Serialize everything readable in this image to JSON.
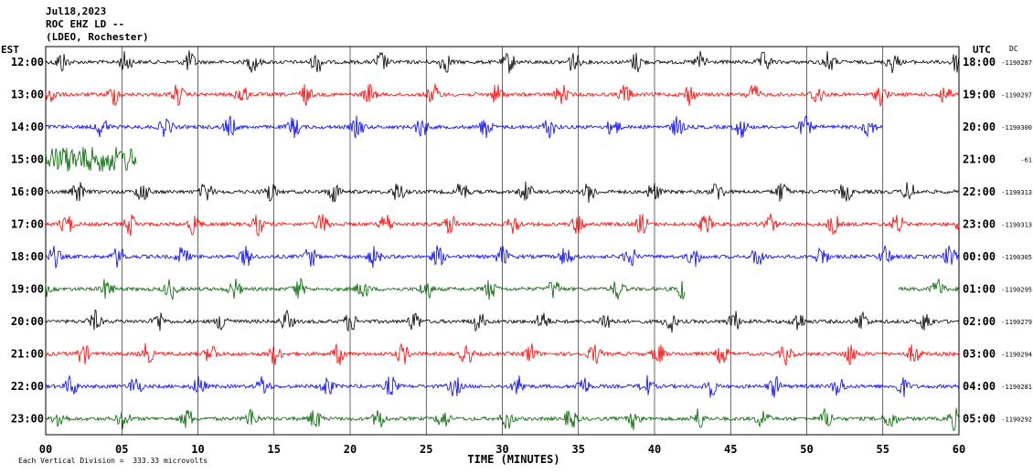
{
  "header": {
    "date": "Jul18,2023",
    "station": "ROC EHZ LD --",
    "network": "(LDEO, Rochester)"
  },
  "left_tz": "EST",
  "right_tz": "UTC",
  "dc_label": "DC",
  "footer": {
    "scale_text": "Each Vertical Division =  333.33 microvolts"
  },
  "colors": {
    "black": "#000000",
    "red": "#ff0000",
    "blue": "#0000ff",
    "green": "#006400"
  },
  "chart_data": {
    "type": "line",
    "title": "",
    "xlabel": "TIME (MINUTES)",
    "ylabel": "",
    "xlim": [
      0,
      60
    ],
    "x_ticks": [
      "00",
      "05",
      "10",
      "15",
      "20",
      "25",
      "30",
      "35",
      "40",
      "45",
      "50",
      "55",
      "60"
    ],
    "grid": true,
    "series": [
      {
        "est": "12:00",
        "utc": "18:00",
        "dc": "-1190287",
        "color": "black",
        "end_minute": 60,
        "start_minute": 0
      },
      {
        "est": "13:00",
        "utc": "19:00",
        "dc": "-1190297",
        "color": "red",
        "end_minute": 60,
        "start_minute": 0
      },
      {
        "est": "14:00",
        "utc": "20:00",
        "dc": "-1190300",
        "color": "blue",
        "end_minute": 55,
        "start_minute": 0
      },
      {
        "est": "15:00",
        "utc": "21:00",
        "dc": "-61",
        "color": "green",
        "end_minute": 6,
        "start_minute": 0
      },
      {
        "est": "16:00",
        "utc": "22:00",
        "dc": "-1190313",
        "color": "black",
        "end_minute": 60,
        "start_minute": 0
      },
      {
        "est": "17:00",
        "utc": "23:00",
        "dc": "-1190313",
        "color": "red",
        "end_minute": 60,
        "start_minute": 0
      },
      {
        "est": "18:00",
        "utc": "00:00",
        "dc": "-1190305",
        "color": "blue",
        "end_minute": 60,
        "start_minute": 0
      },
      {
        "est": "19:00",
        "utc": "01:00",
        "dc": "-1190295",
        "color": "green",
        "end_minute": 60,
        "start_minute": 0,
        "gap": [
          42,
          56
        ]
      },
      {
        "est": "20:00",
        "utc": "02:00",
        "dc": "-1190279",
        "color": "black",
        "end_minute": 60,
        "start_minute": 0
      },
      {
        "est": "21:00",
        "utc": "03:00",
        "dc": "-1190294",
        "color": "red",
        "end_minute": 60,
        "start_minute": 0
      },
      {
        "est": "22:00",
        "utc": "04:00",
        "dc": "-1190281",
        "color": "blue",
        "end_minute": 60,
        "start_minute": 0
      },
      {
        "est": "23:00",
        "utc": "05:00",
        "dc": "-1190292",
        "color": "green",
        "end_minute": 60,
        "start_minute": 0
      }
    ]
  }
}
